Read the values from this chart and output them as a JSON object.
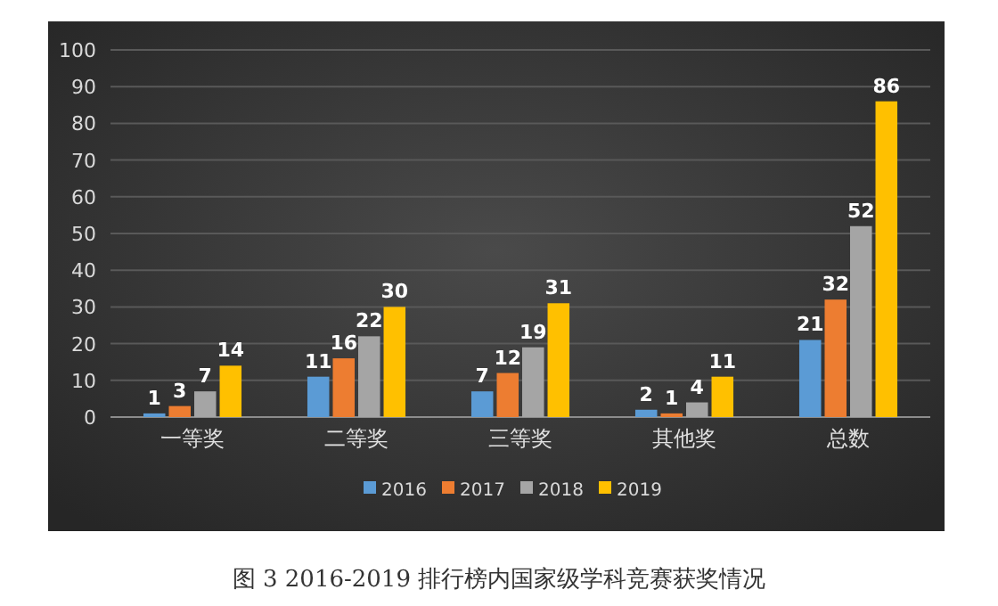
{
  "chart_data": {
    "type": "bar",
    "categories": [
      "一等奖",
      "二等奖",
      "三等奖",
      "其他奖",
      "总数"
    ],
    "series": [
      {
        "name": "2016",
        "color": "#5b9bd5",
        "values": [
          1,
          11,
          7,
          2,
          21
        ]
      },
      {
        "name": "2017",
        "color": "#ed7d31",
        "values": [
          3,
          16,
          12,
          1,
          32
        ]
      },
      {
        "name": "2018",
        "color": "#a5a5a5",
        "values": [
          7,
          22,
          19,
          4,
          52
        ]
      },
      {
        "name": "2019",
        "color": "#ffc000",
        "values": [
          14,
          30,
          31,
          11,
          86
        ]
      }
    ],
    "ylim": [
      0,
      100
    ],
    "yticks": [
      0,
      10,
      20,
      30,
      40,
      50,
      60,
      70,
      80,
      90,
      100
    ],
    "grid": "y",
    "legend": "bottom",
    "data_labels": true,
    "annotations": [
      "图 3 2016-2019 排行榜内国家级学科竞赛获奖情况"
    ]
  }
}
